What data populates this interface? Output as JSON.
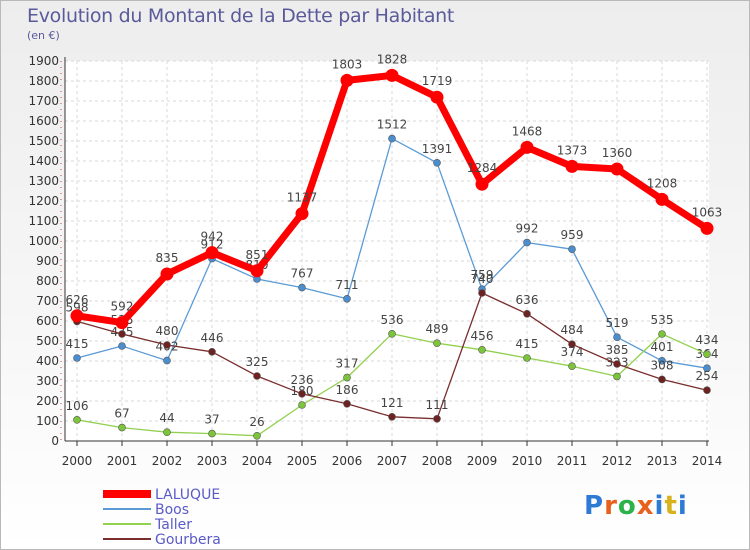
{
  "title": "Evolution du Montant de la Dette par Habitant",
  "subtitle": "(en €)",
  "logo": {
    "text": "Proxiti",
    "colors": [
      "#2e7bd6",
      "#e8601c",
      "#2bb34a",
      "#e8601c",
      "#2e7bd6",
      "#d8b21a",
      "#2e7bd6"
    ]
  },
  "chart_data": {
    "type": "line",
    "x": [
      "2000",
      "2001",
      "2002",
      "2003",
      "2004",
      "2005",
      "2006",
      "2007",
      "2008",
      "2009",
      "2010",
      "2011",
      "2012",
      "2013",
      "2014"
    ],
    "ylim": [
      0,
      1900
    ],
    "yticks": [
      0,
      100,
      200,
      300,
      400,
      500,
      600,
      700,
      800,
      900,
      1000,
      1100,
      1200,
      1300,
      1400,
      1500,
      1600,
      1700,
      1800,
      1900
    ],
    "grid": true,
    "legend_position": "bottom-left",
    "series": [
      {
        "name": "LALUQUE",
        "color": "#ff0000",
        "marker": "#ff0000",
        "width": 7,
        "values": [
          626,
          592,
          835,
          942,
          851,
          1137,
          1803,
          1828,
          1719,
          1284,
          1468,
          1373,
          1360,
          1208,
          1063
        ]
      },
      {
        "name": "Boos",
        "color": "#5b9bd5",
        "marker": "#4a8ed0",
        "width": 1.3,
        "values": [
          415,
          475,
          402,
          912,
          810,
          767,
          711,
          1512,
          1391,
          759,
          992,
          959,
          519,
          401,
          364
        ]
      },
      {
        "name": "Taller",
        "color": "#92d050",
        "marker": "#7cc43a",
        "width": 1.3,
        "values": [
          106,
          67,
          44,
          37,
          26,
          180,
          317,
          536,
          489,
          456,
          415,
          374,
          323,
          535,
          434
        ]
      },
      {
        "name": "Gourbera",
        "color": "#7a2e2e",
        "marker": "#6e2323",
        "width": 1.3,
        "values": [
          598,
          535,
          480,
          446,
          325,
          236,
          186,
          121,
          111,
          740,
          636,
          484,
          385,
          308,
          254
        ]
      }
    ]
  }
}
